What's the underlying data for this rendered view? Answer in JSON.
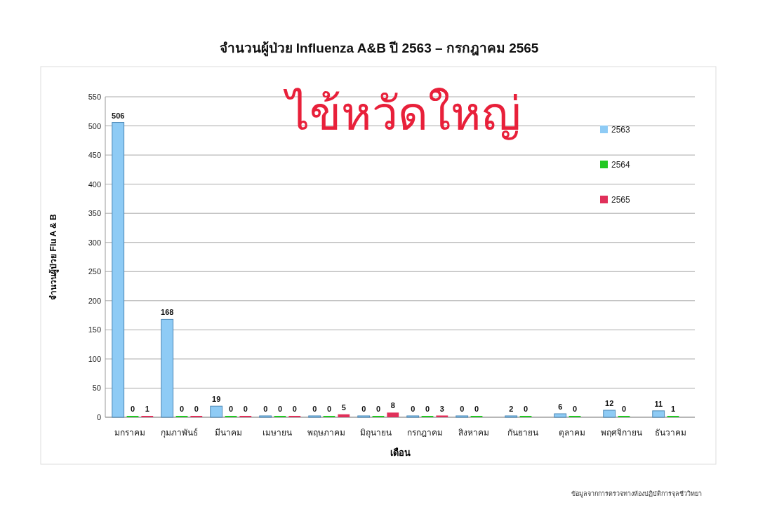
{
  "chart_data": {
    "type": "bar",
    "title": "จำนวนผู้ป่วย Influenza A&B ปี 2563 – กรกฎาคม 2565",
    "xlabel": "เดือน",
    "ylabel": "จำนวนผู้ป่วย Flu A & B",
    "categories": [
      "มกราคม",
      "กุมภาพันธ์",
      "มีนาคม",
      "เมษายน",
      "พฤษภาคม",
      "มิถุนายน",
      "กรกฎาคม",
      "สิงหาคม",
      "กันยายน",
      "ตุลาคม",
      "พฤศจิกายน",
      "ธันวาคม"
    ],
    "series": [
      {
        "name": "2563",
        "color": "#8ecbf5",
        "values": [
          506,
          168,
          19,
          0,
          0,
          0,
          0,
          0,
          2,
          6,
          12,
          11
        ]
      },
      {
        "name": "2564",
        "color": "#22c822",
        "values": [
          0,
          0,
          0,
          0,
          0,
          0,
          0,
          0,
          0,
          0,
          0,
          1
        ]
      },
      {
        "name": "2565",
        "color": "#e0305a",
        "values": [
          1,
          0,
          0,
          0,
          5,
          8,
          3,
          null,
          null,
          null,
          null,
          null
        ]
      }
    ],
    "ylim": [
      0,
      550
    ],
    "yticks": [
      0,
      50,
      100,
      150,
      200,
      250,
      300,
      350,
      400,
      450,
      500,
      550
    ],
    "grid": "y",
    "legend": "right",
    "data_labels": true,
    "annotations": [
      "ไข้หวัดใหญ่",
      "ข้อมูลจากการตรวจทางห้องปฏิบัติการจุลชีววิทยา"
    ]
  }
}
